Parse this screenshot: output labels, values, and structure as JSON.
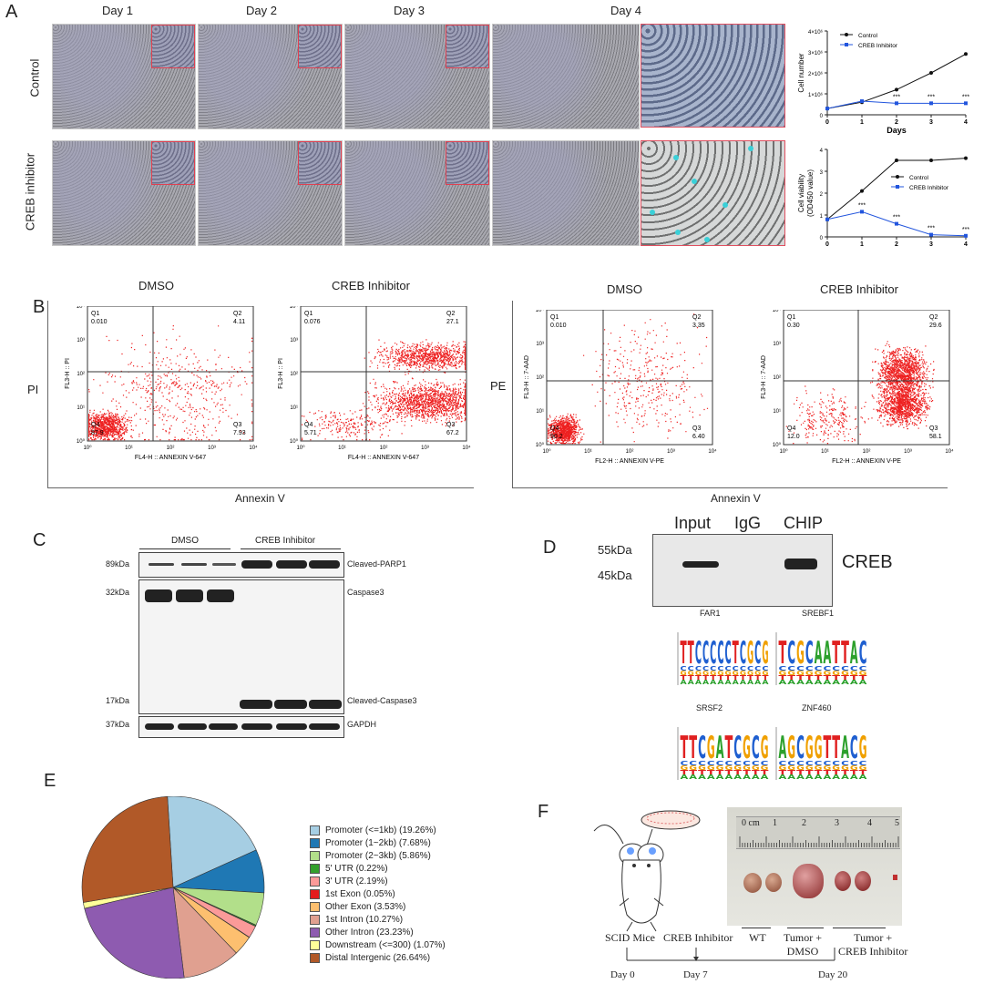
{
  "panels": {
    "A": "A",
    "B": "B",
    "C": "C",
    "D": "D",
    "E": "E",
    "F": "F"
  },
  "panelA": {
    "days": [
      "Day 1",
      "Day 2",
      "Day 3",
      "Day 4"
    ],
    "rows": [
      "Control",
      "CREB inhibitor"
    ],
    "chart_data": [
      {
        "type": "line",
        "x": [
          0,
          1,
          2,
          3,
          4
        ],
        "xlabel": "Days",
        "ylabel": "Cell number",
        "yticks": [
          "0",
          "1×10⁶",
          "2×10⁶",
          "3×10⁶",
          "4×10⁶"
        ],
        "ylim": [
          0,
          4000000
        ],
        "series": [
          {
            "name": "Control",
            "values": [
              300000,
              600000,
              1200000,
              2000000,
              2900000
            ],
            "color": "#111111"
          },
          {
            "name": "CREB Inhibitor",
            "values": [
              300000,
              650000,
              550000,
              550000,
              550000
            ],
            "color": "#2255dd"
          }
        ],
        "annotations": [
          {
            "x": 2,
            "text": "***"
          },
          {
            "x": 3,
            "text": "***"
          },
          {
            "x": 4,
            "text": "***"
          }
        ],
        "legend": "top-left"
      },
      {
        "type": "line",
        "x": [
          0,
          1,
          2,
          3,
          4
        ],
        "xlabel": "",
        "ylabel": "Cell viability (OD450 value)",
        "ylabel_lines": [
          "Cell viability",
          "(OD450 value)"
        ],
        "yticks": [
          "0",
          "1",
          "2",
          "3",
          "4"
        ],
        "ylim": [
          0,
          4
        ],
        "series": [
          {
            "name": "Control",
            "values": [
              0.8,
              2.1,
              3.5,
              3.5,
              3.6
            ],
            "color": "#111111"
          },
          {
            "name": "CREB Inhibitor",
            "values": [
              0.8,
              1.15,
              0.6,
              0.1,
              0.05
            ],
            "color": "#2255dd"
          }
        ],
        "annotations": [
          {
            "x": 1,
            "text": "***"
          },
          {
            "x": 2,
            "text": "***"
          },
          {
            "x": 3,
            "text": "***"
          },
          {
            "x": 4,
            "text": "***"
          }
        ],
        "legend": "middle-right"
      }
    ]
  },
  "panelB": {
    "plots": [
      {
        "title": "DMSO",
        "ylabel": "FL3-H :: PI",
        "xlabel": "FL4-H :: ANNEXIN V-647",
        "q1": "Q1\n0.010",
        "q2": "Q2\n4.11",
        "q3": "Q3\n7.93",
        "q4": "Q4\n87.9"
      },
      {
        "title": "CREB Inhibitor",
        "ylabel": "FL3-H :: PI",
        "xlabel": "FL4-H :: ANNEXIN V-647",
        "q1": "Q1\n0.076",
        "q2": "Q2\n27.1",
        "q3": "Q3\n67.2",
        "q4": "Q4\n5.71"
      },
      {
        "title": "DMSO",
        "ylabel": "FL3-H :: 7-AAD",
        "xlabel": "FL2-H :: ANNEXIN V-PE",
        "q1": "Q1\n0.010",
        "q2": "Q2\n3.35",
        "q3": "Q3\n6.40",
        "q4": "Q4\n90.2"
      },
      {
        "title": "CREB Inhibitor",
        "ylabel": "FL3-H :: 7-AAD",
        "xlabel": "FL2-H :: ANNEXIN V-PE",
        "q1": "Q1\n0.30",
        "q2": "Q2\n29.6",
        "q3": "Q3\n58.1",
        "q4": "Q4\n12.0"
      }
    ],
    "side_left": "PI",
    "side_right": "PE",
    "bottom_left": "Annexin V",
    "bottom_right": "Annexin V",
    "ticks": [
      "10⁰",
      "10¹",
      "10²",
      "10³",
      "10⁴"
    ]
  },
  "panelC": {
    "groups": [
      "DMSO",
      "CREB Inhibitor"
    ],
    "mw": [
      "89kDa",
      "32kDa",
      "17kDa",
      "37kDa"
    ],
    "labels": [
      "Cleaved-PARP1",
      "Caspase3",
      "Cleaved-Caspase3",
      "GAPDH"
    ]
  },
  "panelD": {
    "lanes": [
      "Input",
      "IgG",
      "CHIP"
    ],
    "mw": [
      "55kDa",
      "45kDa"
    ],
    "protein": "CREB",
    "motifs": [
      {
        "name": "FAR1",
        "seq": "TTCCCCCTCGCG"
      },
      {
        "name": "SREBF1",
        "seq": "TCGCAATTAC"
      },
      {
        "name": "SRSF2",
        "seq": "TTCGATCGCG"
      },
      {
        "name": "ZNF460",
        "seq": "AGCGGTTACG"
      }
    ]
  },
  "panelE": {
    "chart_data": {
      "type": "pie",
      "categories": [
        "Promoter (<=1kb) (19.26%)",
        "Promoter (1~2kb) (7.68%)",
        "Promoter (2~3kb) (5.86%)",
        "5' UTR (0.22%)",
        "3' UTR (2.19%)",
        "1st Exon (0.05%)",
        "Other Exon (3.53%)",
        "1st Intron (10.27%)",
        "Other Intron (23.23%)",
        "Downstream (<=300) (1.07%)",
        "Distal Intergenic (26.64%)"
      ],
      "values": [
        19.26,
        7.68,
        5.86,
        0.22,
        2.19,
        0.05,
        3.53,
        10.27,
        23.23,
        1.07,
        26.64
      ],
      "colors": [
        "#a6cee3",
        "#1f78b4",
        "#b2df8a",
        "#33a02c",
        "#fb9a99",
        "#e31a1c",
        "#fdbf6f",
        "#e0a090",
        "#8e5bb0",
        "#ffff99",
        "#b15928"
      ],
      "legend": "right"
    }
  },
  "panelF": {
    "ruler": "0 cm",
    "ruler_nums": [
      "1",
      "2",
      "3",
      "4",
      "5"
    ],
    "timeline": [
      "SCID Mice",
      "CREB Inhibitor",
      "WT",
      "Tumor +\nDMSO",
      "Tumor +\nCREB Inhibitor"
    ],
    "days": [
      "Day 0",
      "Day 7",
      "Day 20"
    ]
  }
}
